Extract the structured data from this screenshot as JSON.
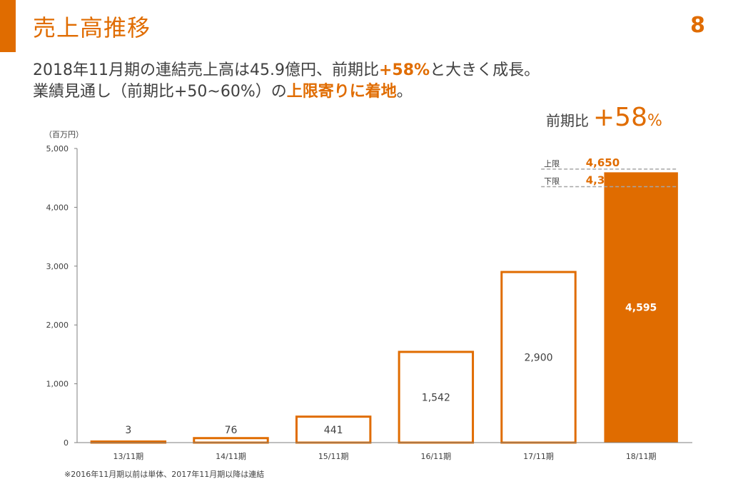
{
  "header": {
    "title": "売上高推移",
    "page_number": "8"
  },
  "headline": {
    "line1_a": "2018年11月期の連結売上高は45.9億円、前期比",
    "line1_b": "+58%",
    "line1_c": "と大きく成長。",
    "line2_a": "業績見通し（前期比+50~60%）の",
    "line2_b": "上限寄りに着地",
    "line2_c": "。"
  },
  "yoy": {
    "label": "前期比",
    "value": "+58",
    "unit": "%"
  },
  "unit_label": "（百万円）",
  "footnote": "※2016年11月期以前は単体、2017年11月期以降は連結",
  "colors": {
    "accent": "#e06c00",
    "axis": "#7f7f7f",
    "guide": "#a6a6a6",
    "text": "#404040"
  },
  "chart_data": {
    "type": "bar",
    "categories": [
      "13/11期",
      "14/11期",
      "15/11期",
      "16/11期",
      "17/11期",
      "18/11期"
    ],
    "values": [
      3,
      76,
      441,
      1542,
      2900,
      4595
    ],
    "value_labels": [
      "3",
      "76",
      "441",
      "1,542",
      "2,900",
      "4,595"
    ],
    "highlight_index": 5,
    "ylim": [
      0,
      5000
    ],
    "yticks": [
      0,
      1000,
      2000,
      3000,
      4000,
      5000
    ],
    "ytick_labels": [
      "0",
      "1,000",
      "2,000",
      "3,000",
      "4,000",
      "5,000"
    ],
    "ylabel": "（百万円）",
    "annotations": [
      {
        "label": "上限",
        "value": 4650,
        "value_label": "4,650"
      },
      {
        "label": "下限",
        "value": 4350,
        "value_label": "4,350"
      }
    ]
  }
}
